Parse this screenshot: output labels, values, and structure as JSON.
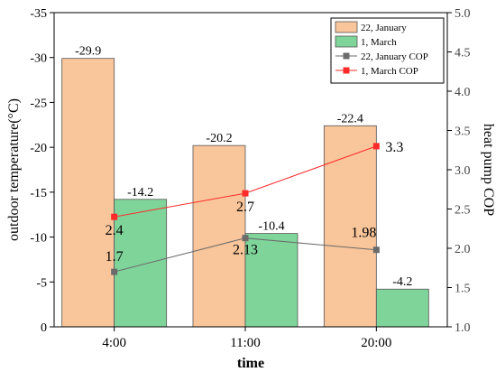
{
  "chart_data": {
    "type": "bar",
    "xlabel": "time",
    "ylabel": "outdoor temperature(°C)",
    "y2label": "heat pump COP",
    "categories": [
      "4:00",
      "11:00",
      "20:00"
    ],
    "ylim": [
      0,
      -35
    ],
    "y_ticks": [
      0,
      -5,
      -10,
      -15,
      -20,
      -25,
      -30,
      -35
    ],
    "y_tick_labels": [
      "0",
      "-5",
      "-10",
      "-15",
      "-20",
      "-25",
      "-30",
      "-35"
    ],
    "y2lim": [
      1.0,
      5.0
    ],
    "y2_ticks": [
      1.0,
      1.5,
      2.0,
      2.5,
      3.0,
      3.5,
      4.0,
      4.5,
      5.0
    ],
    "y2_tick_labels": [
      "1.0",
      "1.5",
      "2.0",
      "2.5",
      "3.0",
      "3.5",
      "4.0",
      "4.5",
      "5.0"
    ],
    "legend_position": "top-right",
    "bar_series": [
      {
        "name": "22, January",
        "values": [
          -29.9,
          -20.2,
          -22.4
        ],
        "labels": [
          "-29.9",
          "-20.2",
          "-22.4"
        ],
        "color": "#f9c59a"
      },
      {
        "name": "1, March",
        "values": [
          -14.2,
          -10.4,
          -4.2
        ],
        "labels": [
          "-14.2",
          "-10.4",
          "-4.2"
        ],
        "color": "#7fd49a"
      }
    ],
    "line_series": [
      {
        "name": "22, January COP",
        "values": [
          1.7,
          2.13,
          1.98
        ],
        "labels": [
          "1.7",
          "2.13",
          "1.98"
        ],
        "color": "#6b6b6b"
      },
      {
        "name": "1, March COP",
        "values": [
          2.4,
          2.7,
          3.3
        ],
        "labels": [
          "2.4",
          "2.7",
          "3.3"
        ],
        "color": "#ff2a2a"
      }
    ]
  }
}
